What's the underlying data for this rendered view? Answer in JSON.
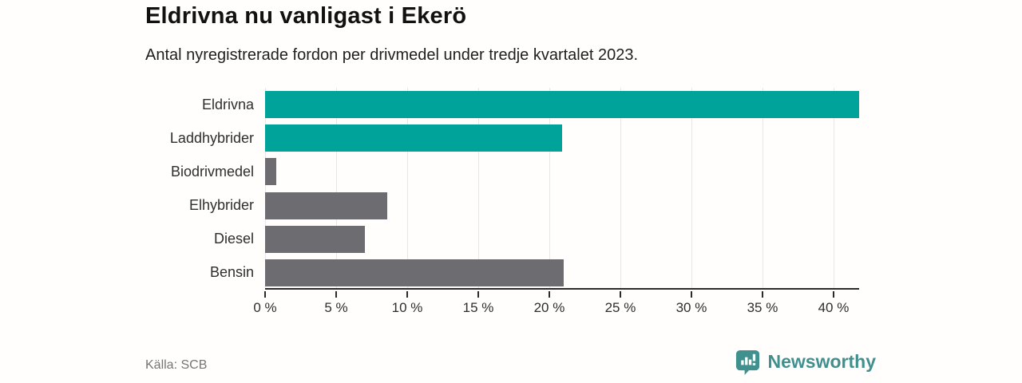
{
  "header": {
    "title": "Eldrivna nu vanligast i Ekerö",
    "subtitle": "Antal nyregistrerade fordon per drivmedel under tredje kvartalet 2023."
  },
  "footer": {
    "source": "Källa: SCB",
    "brand": "Newsworthy"
  },
  "colors": {
    "accent_teal": "#00a39a",
    "bar_gray": "#6c6c71",
    "brand_teal": "#3f908e",
    "grid": "#e7e7e7",
    "axis": "#2b2b2b"
  },
  "chart_data": {
    "type": "bar",
    "orientation": "horizontal",
    "title": "Eldrivna nu vanligast i Ekerö",
    "subtitle": "Antal nyregistrerade fordon per drivmedel under tredje kvartalet 2023.",
    "source": "Källa: SCB",
    "categories": [
      "Eldrivna",
      "Laddhybrider",
      "Biodrivmedel",
      "Elhybrider",
      "Diesel",
      "Bensin"
    ],
    "values": [
      41.8,
      20.9,
      0.8,
      8.6,
      7.0,
      21.0
    ],
    "unit": "%",
    "bar_colors": [
      "#00a39a",
      "#00a39a",
      "#6c6c71",
      "#6c6c71",
      "#6c6c71",
      "#6c6c71"
    ],
    "xlim": [
      0,
      41.8
    ],
    "x_ticks": [
      0,
      5,
      10,
      15,
      20,
      25,
      30,
      35,
      40
    ],
    "x_tick_labels": [
      "0 %",
      "5 %",
      "10 %",
      "15 %",
      "20 %",
      "25 %",
      "30 %",
      "35 %",
      "40 %"
    ],
    "grid": true,
    "legend": false
  }
}
